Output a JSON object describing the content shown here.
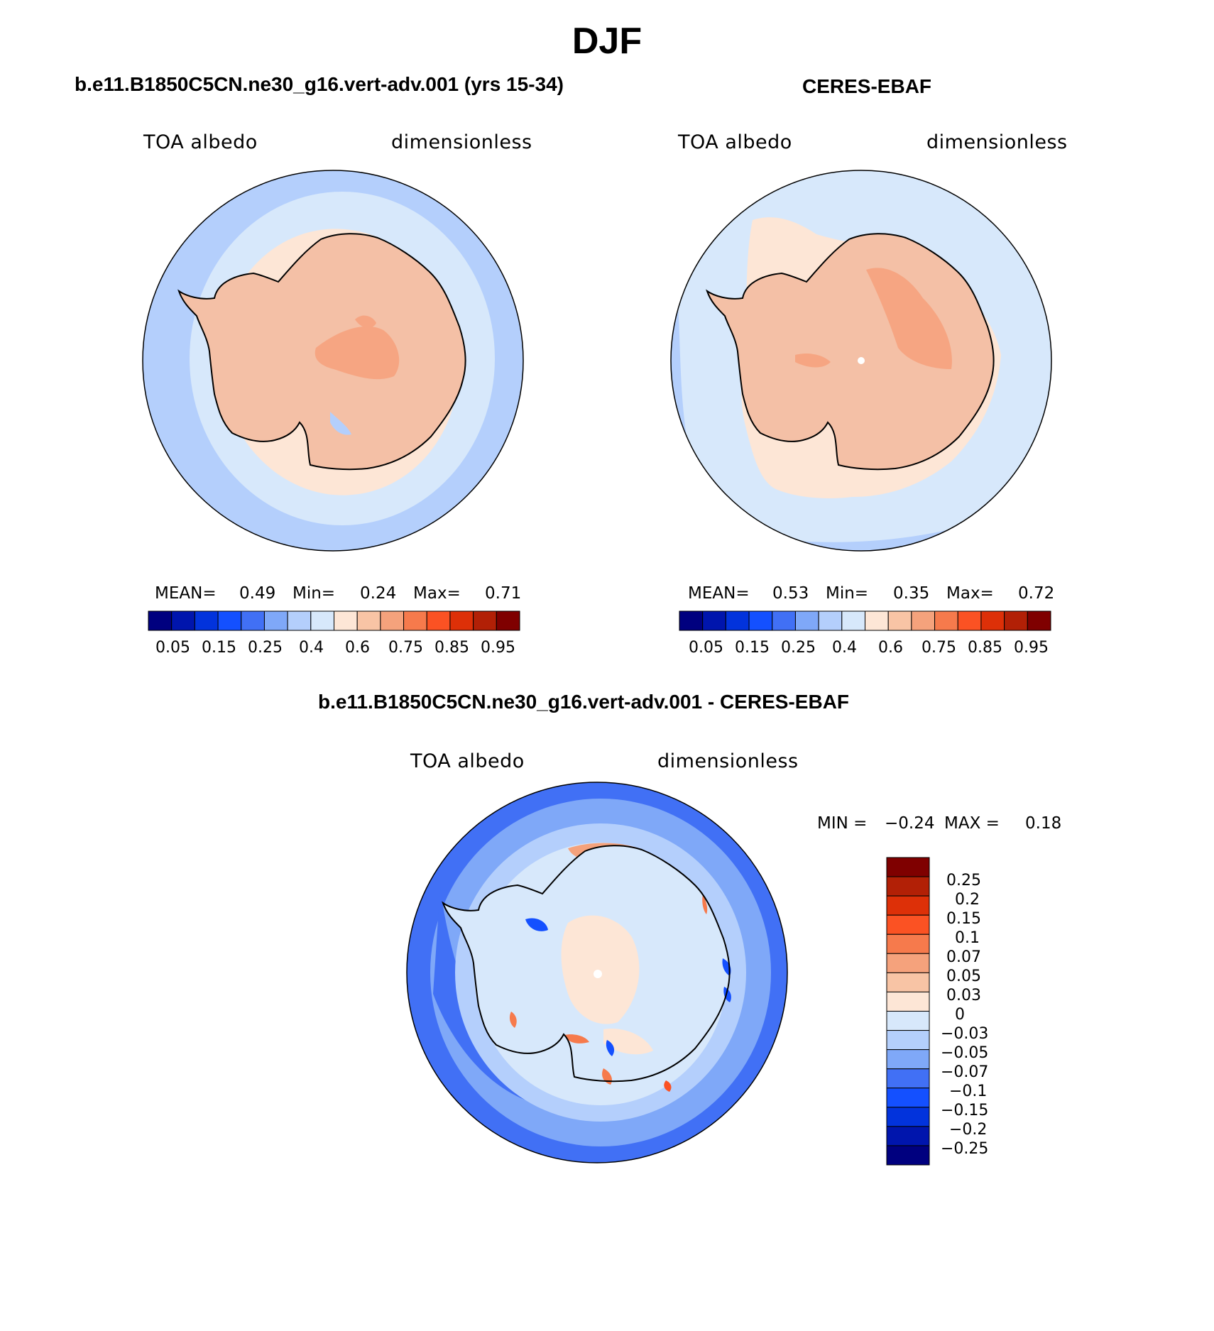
{
  "figure": {
    "title": "DJF",
    "colors": {
      "land": "#f4c0a6",
      "interior_high": "#f6a582",
      "coast_light": "#fde6d6",
      "ocean_pale": "#d7e8fb",
      "ocean_light": "#b4cffc",
      "ocean_mid": "#7fa8f8",
      "outline": "#000000"
    }
  },
  "panels": [
    {
      "title": "b.e11.B1850C5CN.ne30_g16.vert-adv.001 (yrs 15-34)",
      "left_label": "TOA albedo",
      "right_label": "dimensionless",
      "stats": {
        "mean_label": "MEAN=",
        "mean": "0.49",
        "min_label": "Min=",
        "min": "0.24",
        "max_label": "Max=",
        "max": "0.71"
      }
    },
    {
      "title": "CERES-EBAF",
      "left_label": "TOA albedo",
      "right_label": "dimensionless",
      "stats": {
        "mean_label": "MEAN=",
        "mean": "0.53",
        "min_label": "Min=",
        "min": "0.35",
        "max_label": "Max=",
        "max": "0.72"
      }
    }
  ],
  "diff_panel": {
    "title": "b.e11.B1850C5CN.ne30_g16.vert-adv.001 - CERES-EBAF",
    "left_label": "TOA albedo",
    "right_label": "dimensionless",
    "stats": {
      "min_label": "MIN =",
      "min": "−0.24",
      "max_label": "MAX =",
      "max": "0.18"
    }
  },
  "colorbar_top": {
    "colors": [
      "#00007f",
      "#0015ad",
      "#0233dc",
      "#1450ff",
      "#4170f5",
      "#7fa8f8",
      "#b4cffc",
      "#d7e8fb",
      "#fde6d6",
      "#f8c4a5",
      "#f5a27c",
      "#f67a4c",
      "#fb5223",
      "#dd3008",
      "#b22006",
      "#7f0000"
    ],
    "labels": [
      "0.05",
      "0.15",
      "0.25",
      "0.4",
      "0.6",
      "0.75",
      "0.85",
      "0.95"
    ]
  },
  "colorbar_diff": {
    "colors": [
      "#7f0000",
      "#b22006",
      "#dd3008",
      "#fb5223",
      "#f67a4c",
      "#f5a27c",
      "#f8c4a5",
      "#fde6d6",
      "#d7e8fb",
      "#b4cffc",
      "#7fa8f8",
      "#4170f5",
      "#1450ff",
      "#0233dc",
      "#0015ad",
      "#00007f"
    ],
    "labels": [
      "0.25",
      "0.2",
      "0.15",
      "0.1",
      "0.07",
      "0.05",
      "0.03",
      "0",
      "−0.03",
      "−0.05",
      "−0.07",
      "−0.1",
      "−0.15",
      "−0.2",
      "−0.25"
    ]
  }
}
